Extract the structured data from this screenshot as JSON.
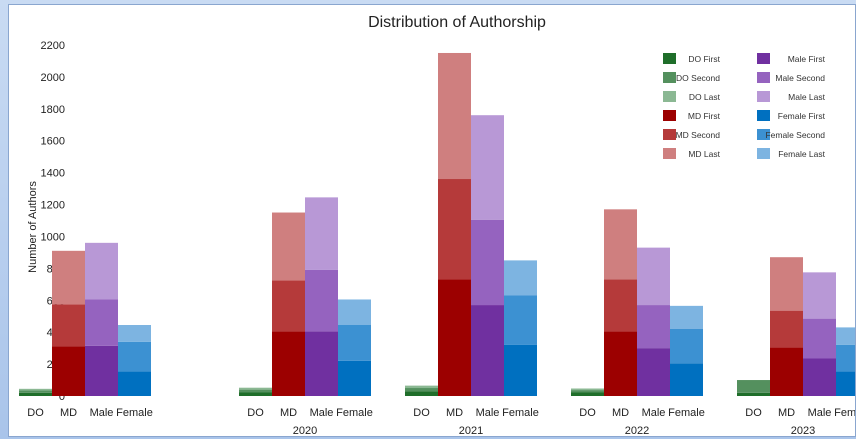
{
  "chart_data": {
    "type": "bar",
    "title": "Distribution of Authorship",
    "ylabel": "Number of Authors",
    "xlabel": "",
    "ylim": [
      0,
      2200
    ],
    "yticks": [
      0,
      200,
      400,
      600,
      800,
      1000,
      1200,
      1400,
      1600,
      1800,
      2000,
      2200
    ],
    "grid": false,
    "stacked": true,
    "legend_position": "top-right",
    "bar_categories": [
      "DO",
      "MD",
      "Male",
      "Female"
    ],
    "groups": [
      {
        "year": "",
        "bars": [
          {
            "category": "DO",
            "segments": [
              {
                "series": "DO First",
                "value": 20
              },
              {
                "series": "DO Second",
                "value": 15
              },
              {
                "series": "DO Last",
                "value": 10
              }
            ]
          },
          {
            "category": "MD",
            "segments": [
              {
                "series": "MD First",
                "value": 310
              },
              {
                "series": "MD Second",
                "value": 265
              },
              {
                "series": "MD Last",
                "value": 335
              }
            ]
          },
          {
            "category": "Male",
            "segments": [
              {
                "series": "Male First",
                "value": 315
              },
              {
                "series": "Male Second",
                "value": 290
              },
              {
                "series": "Male Last",
                "value": 355
              }
            ]
          },
          {
            "category": "Female",
            "segments": [
              {
                "series": "Female First",
                "value": 155
              },
              {
                "series": "Female Second",
                "value": 185
              },
              {
                "series": "Female Last",
                "value": 105
              }
            ]
          }
        ]
      },
      {
        "year": "2020",
        "bars": [
          {
            "category": "DO",
            "segments": [
              {
                "series": "DO First",
                "value": 22
              },
              {
                "series": "DO Second",
                "value": 18
              },
              {
                "series": "DO Last",
                "value": 12
              }
            ]
          },
          {
            "category": "MD",
            "segments": [
              {
                "series": "MD First",
                "value": 405
              },
              {
                "series": "MD Second",
                "value": 320
              },
              {
                "series": "MD Last",
                "value": 425
              }
            ]
          },
          {
            "category": "Male",
            "segments": [
              {
                "series": "Male First",
                "value": 405
              },
              {
                "series": "Male Second",
                "value": 385
              },
              {
                "series": "Male Last",
                "value": 455
              }
            ]
          },
          {
            "category": "Female",
            "segments": [
              {
                "series": "Female First",
                "value": 220
              },
              {
                "series": "Female Second",
                "value": 225
              },
              {
                "series": "Female Last",
                "value": 160
              }
            ]
          }
        ]
      },
      {
        "year": "2021",
        "bars": [
          {
            "category": "DO",
            "segments": [
              {
                "series": "DO First",
                "value": 30
              },
              {
                "series": "DO Second",
                "value": 20
              },
              {
                "series": "DO Last",
                "value": 15
              }
            ]
          },
          {
            "category": "MD",
            "segments": [
              {
                "series": "MD First",
                "value": 730
              },
              {
                "series": "MD Second",
                "value": 630
              },
              {
                "series": "MD Last",
                "value": 790
              }
            ]
          },
          {
            "category": "Male",
            "segments": [
              {
                "series": "Male First",
                "value": 570
              },
              {
                "series": "Male Second",
                "value": 535
              },
              {
                "series": "Male Last",
                "value": 655
              }
            ]
          },
          {
            "category": "Female",
            "segments": [
              {
                "series": "Female First",
                "value": 320
              },
              {
                "series": "Female Second",
                "value": 310
              },
              {
                "series": "Female Last",
                "value": 220
              }
            ]
          }
        ]
      },
      {
        "year": "2022",
        "bars": [
          {
            "category": "DO",
            "segments": [
              {
                "series": "DO First",
                "value": 22
              },
              {
                "series": "DO Second",
                "value": 15
              },
              {
                "series": "DO Last",
                "value": 10
              }
            ]
          },
          {
            "category": "MD",
            "segments": [
              {
                "series": "MD First",
                "value": 405
              },
              {
                "series": "MD Second",
                "value": 325
              },
              {
                "series": "MD Last",
                "value": 440
              }
            ]
          },
          {
            "category": "Male",
            "segments": [
              {
                "series": "Male First",
                "value": 300
              },
              {
                "series": "Male Second",
                "value": 270
              },
              {
                "series": "Male Last",
                "value": 360
              }
            ]
          },
          {
            "category": "Female",
            "segments": [
              {
                "series": "Female First",
                "value": 205
              },
              {
                "series": "Female Second",
                "value": 215
              },
              {
                "series": "Female Last",
                "value": 145
              }
            ]
          }
        ]
      },
      {
        "year": "2023",
        "bars": [
          {
            "category": "DO",
            "segments": [
              {
                "series": "DO First",
                "value": 20
              },
              {
                "series": "DO Second",
                "value": 80
              },
              {
                "series": "DO Last",
                "value": 0
              }
            ]
          },
          {
            "category": "MD",
            "segments": [
              {
                "series": "MD First",
                "value": 305
              },
              {
                "series": "MD Second",
                "value": 230
              },
              {
                "series": "MD Last",
                "value": 335
              }
            ]
          },
          {
            "category": "Male",
            "segments": [
              {
                "series": "Male First",
                "value": 235
              },
              {
                "series": "Male Second",
                "value": 250
              },
              {
                "series": "Male Last",
                "value": 290
              }
            ]
          },
          {
            "category": "Female",
            "segments": [
              {
                "series": "Female First",
                "value": 155
              },
              {
                "series": "Female Second",
                "value": 165
              },
              {
                "series": "Female Last",
                "value": 110
              }
            ]
          }
        ]
      }
    ],
    "legend": [
      {
        "name": "DO First",
        "color": "#1f6e2a"
      },
      {
        "name": "DO Second",
        "color": "#54905e"
      },
      {
        "name": "DO Last",
        "color": "#8bb893"
      },
      {
        "name": "MD First",
        "color": "#9c0000"
      },
      {
        "name": "MD Second",
        "color": "#b53a3a"
      },
      {
        "name": "MD Last",
        "color": "#cf7f7f"
      },
      {
        "name": "Male First",
        "color": "#7030a0"
      },
      {
        "name": "Male Second",
        "color": "#9563bf"
      },
      {
        "name": "Male Last",
        "color": "#b898d6"
      },
      {
        "name": "Female First",
        "color": "#0070c0"
      },
      {
        "name": "Female Second",
        "color": "#3c91d2"
      },
      {
        "name": "Female Last",
        "color": "#7db4e1"
      }
    ]
  }
}
